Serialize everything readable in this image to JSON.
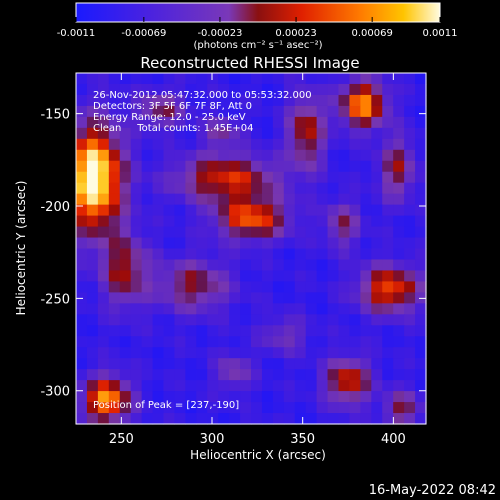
{
  "chart_data": {
    "type": "heatmap",
    "title": "Reconstructed RHESSI Image",
    "xlabel": "Heliocentric X (arcsec)",
    "ylabel": "Heliocentric Y (arcsec)",
    "xlim": [
      225,
      418
    ],
    "ylim": [
      -318,
      -128
    ],
    "x_ticks": [
      250,
      300,
      350,
      400
    ],
    "y_ticks": [
      -150,
      -200,
      -250,
      -300
    ],
    "colorbar": {
      "range": [
        -0.0011,
        0.0011
      ],
      "ticks": [
        "-0.0011",
        "-0.00069",
        "-0.00023",
        "0.00023",
        "0.00069",
        "0.0011"
      ],
      "unit_label": "(photons cm⁻² s⁻¹ asec⁻²)",
      "colors": [
        "#1a1aff",
        "#5a1fd0",
        "#7a38b8",
        "#b01818",
        "#ff5a00",
        "#ffb000",
        "#fff8c8"
      ]
    },
    "info_lines": [
      "26-Nov-2012 05:47:32.000 to 05:53:32.000",
      "Detectors: 3F 5F 6F 7F 8F, Att 0",
      "Energy Range: 12.0 - 25.0 keV",
      "Clean     Total counts: 1.45E+04"
    ],
    "peak_label": "Position of Peak = [237,-190]",
    "peak": {
      "x": 237,
      "y": -190
    },
    "sources": [
      {
        "x": 235,
        "y": -185,
        "sx": 11,
        "sy": 20,
        "a": 1.0
      },
      {
        "x": 252,
        "y": -235,
        "sx": 9,
        "sy": 14,
        "a": 0.45
      },
      {
        "x": 242,
        "y": -305,
        "sx": 9,
        "sy": 9,
        "a": 0.75
      },
      {
        "x": 308,
        "y": -185,
        "sx": 20,
        "sy": 9,
        "a": 0.55
      },
      {
        "x": 322,
        "y": -207,
        "sx": 14,
        "sy": 8,
        "a": 0.62
      },
      {
        "x": 272,
        "y": -148,
        "sx": 9,
        "sy": 7,
        "a": 0.38
      },
      {
        "x": 305,
        "y": -160,
        "sx": 7,
        "sy": 6,
        "a": 0.3
      },
      {
        "x": 290,
        "y": -243,
        "sx": 14,
        "sy": 10,
        "a": 0.42
      },
      {
        "x": 312,
        "y": -290,
        "sx": 7,
        "sy": 7,
        "a": 0.3
      },
      {
        "x": 352,
        "y": -160,
        "sx": 7,
        "sy": 14,
        "a": 0.5
      },
      {
        "x": 372,
        "y": -210,
        "sx": 7,
        "sy": 9,
        "a": 0.35
      },
      {
        "x": 383,
        "y": -145,
        "sx": 9,
        "sy": 9,
        "a": 0.72
      },
      {
        "x": 402,
        "y": -180,
        "sx": 7,
        "sy": 12,
        "a": 0.42
      },
      {
        "x": 398,
        "y": -245,
        "sx": 12,
        "sy": 9,
        "a": 0.62
      },
      {
        "x": 375,
        "y": -295,
        "sx": 9,
        "sy": 9,
        "a": 0.55
      },
      {
        "x": 340,
        "y": -270,
        "sx": 9,
        "sy": 7,
        "a": 0.25
      },
      {
        "x": 405,
        "y": -310,
        "sx": 7,
        "sy": 7,
        "a": 0.4
      }
    ]
  },
  "footer_date": "16-May-2022 08:42"
}
